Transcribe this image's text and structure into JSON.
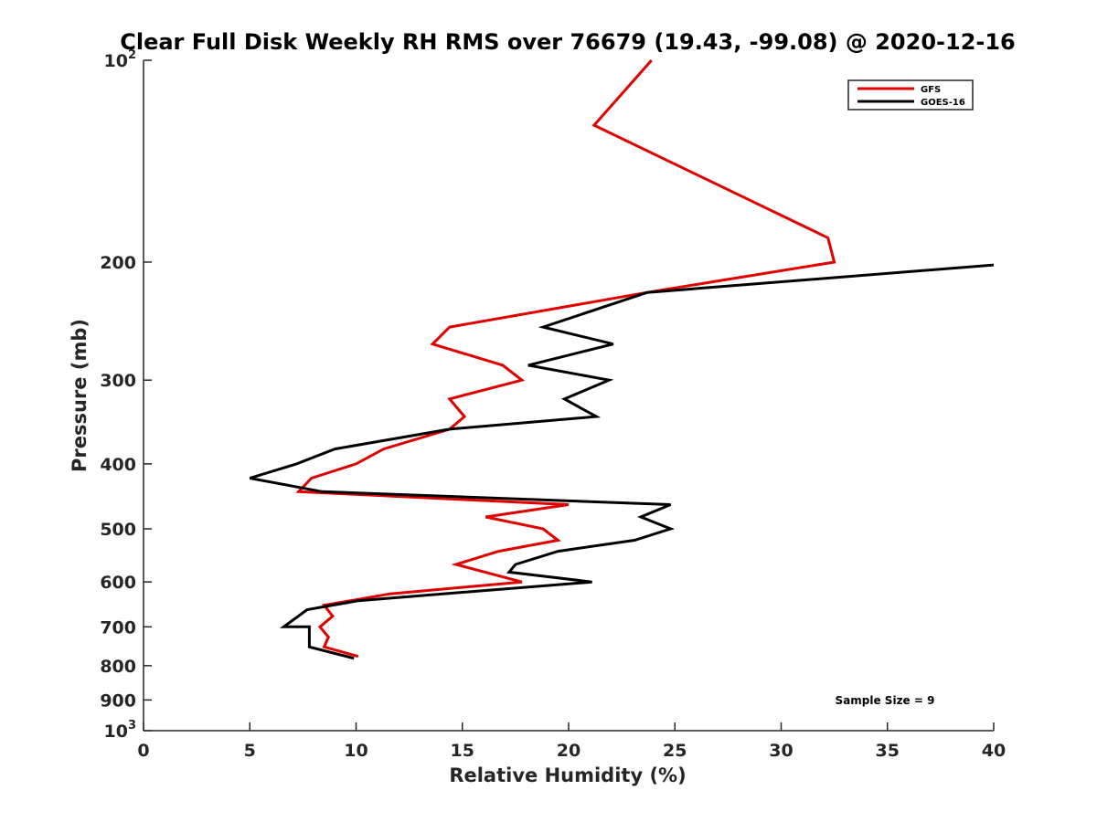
{
  "chart_data": {
    "type": "line",
    "title": "Clear Full Disk Weekly RH RMS over 76679 (19.43, -99.08) @ 2020-12-16",
    "xlabel": "Relative Humidity (%)",
    "ylabel": "Pressure (mb)",
    "xlim": [
      0,
      40
    ],
    "ylim": [
      100,
      1000
    ],
    "y_scale": "log",
    "y_reversed": true,
    "grid": false,
    "legend_position": "top-right",
    "x_ticks": [
      "0",
      "5",
      "10",
      "15",
      "20",
      "25",
      "30",
      "35",
      "40"
    ],
    "y_ticks": [
      {
        "value": 100,
        "base": "10",
        "exp": "2"
      },
      {
        "value": 200,
        "label": "200"
      },
      {
        "value": 300,
        "label": "300"
      },
      {
        "value": 400,
        "label": "400"
      },
      {
        "value": 500,
        "label": "500"
      },
      {
        "value": 600,
        "label": "600"
      },
      {
        "value": 700,
        "label": "700"
      },
      {
        "value": 800,
        "label": "800"
      },
      {
        "value": 900,
        "label": "900"
      },
      {
        "value": 1000,
        "base": "10",
        "exp": "3"
      }
    ],
    "annotation": "Sample Size = 9",
    "series": [
      {
        "name": "GFS",
        "color": "#e00000",
        "points": [
          {
            "x": 23.9,
            "y": 100
          },
          {
            "x": 21.2,
            "y": 125
          },
          {
            "x": 32.2,
            "y": 184
          },
          {
            "x": 32.5,
            "y": 200
          },
          {
            "x": 23.7,
            "y": 222
          },
          {
            "x": 14.4,
            "y": 250
          },
          {
            "x": 13.6,
            "y": 265
          },
          {
            "x": 16.9,
            "y": 285
          },
          {
            "x": 17.8,
            "y": 300
          },
          {
            "x": 14.4,
            "y": 320
          },
          {
            "x": 15.1,
            "y": 340
          },
          {
            "x": 14.4,
            "y": 355
          },
          {
            "x": 11.3,
            "y": 380
          },
          {
            "x": 10.0,
            "y": 400
          },
          {
            "x": 7.9,
            "y": 420
          },
          {
            "x": 7.3,
            "y": 440
          },
          {
            "x": 20.0,
            "y": 460
          },
          {
            "x": 16.1,
            "y": 480
          },
          {
            "x": 18.8,
            "y": 500
          },
          {
            "x": 19.5,
            "y": 520
          },
          {
            "x": 16.7,
            "y": 540
          },
          {
            "x": 14.7,
            "y": 565
          },
          {
            "x": 17.8,
            "y": 600
          },
          {
            "x": 11.6,
            "y": 625
          },
          {
            "x": 8.5,
            "y": 650
          },
          {
            "x": 8.9,
            "y": 675
          },
          {
            "x": 8.3,
            "y": 700
          },
          {
            "x": 8.7,
            "y": 725
          },
          {
            "x": 8.5,
            "y": 750
          },
          {
            "x": 10.1,
            "y": 775
          }
        ]
      },
      {
        "name": "GOES-16",
        "color": "#000000",
        "points": [
          {
            "x": 40.0,
            "y": 202
          },
          {
            "x": 23.7,
            "y": 222
          },
          {
            "x": 18.8,
            "y": 250
          },
          {
            "x": 22.1,
            "y": 265
          },
          {
            "x": 18.1,
            "y": 285
          },
          {
            "x": 21.9,
            "y": 300
          },
          {
            "x": 19.8,
            "y": 320
          },
          {
            "x": 21.3,
            "y": 340
          },
          {
            "x": 14.4,
            "y": 355
          },
          {
            "x": 9.0,
            "y": 380
          },
          {
            "x": 7.2,
            "y": 400
          },
          {
            "x": 5.0,
            "y": 420
          },
          {
            "x": 8.4,
            "y": 440
          },
          {
            "x": 24.8,
            "y": 460
          },
          {
            "x": 23.4,
            "y": 480
          },
          {
            "x": 24.8,
            "y": 500
          },
          {
            "x": 23.1,
            "y": 520
          },
          {
            "x": 19.5,
            "y": 540
          },
          {
            "x": 17.5,
            "y": 565
          },
          {
            "x": 17.2,
            "y": 580
          },
          {
            "x": 21.1,
            "y": 600
          },
          {
            "x": 10.1,
            "y": 640
          },
          {
            "x": 7.7,
            "y": 660
          },
          {
            "x": 6.6,
            "y": 700
          },
          {
            "x": 7.8,
            "y": 700
          },
          {
            "x": 7.8,
            "y": 750
          },
          {
            "x": 9.9,
            "y": 780
          }
        ]
      }
    ]
  }
}
